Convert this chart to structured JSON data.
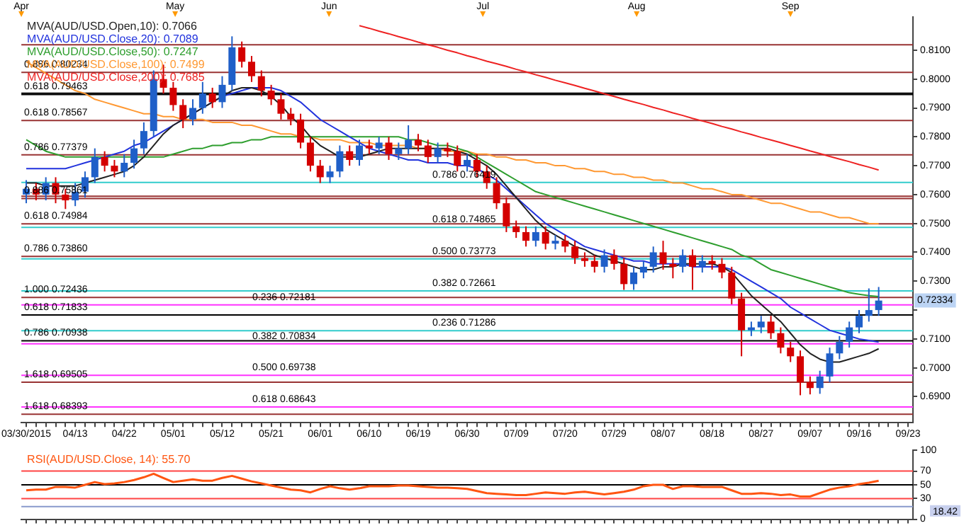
{
  "chart_data": [
    {
      "type": "candlestick",
      "categories": [
        "03/30/2015",
        null,
        null,
        null,
        null,
        "04/13",
        null,
        null,
        null,
        null,
        "04/22",
        null,
        null,
        null,
        null,
        "05/01",
        null,
        null,
        null,
        null,
        "05/12",
        null,
        null,
        null,
        null,
        "05/21",
        null,
        null,
        null,
        null,
        "06/01",
        null,
        null,
        null,
        null,
        "06/10",
        null,
        null,
        null,
        null,
        "06/19",
        null,
        null,
        null,
        null,
        "06/30",
        null,
        null,
        null,
        null,
        "07/09",
        null,
        null,
        null,
        null,
        "07/20",
        null,
        null,
        null,
        null,
        "07/29",
        null,
        null,
        null,
        null,
        "08/07",
        null,
        null,
        null,
        null,
        "08/18",
        null,
        null,
        null,
        null,
        "08/27",
        null,
        null,
        null,
        null,
        "09/07",
        null,
        null,
        null,
        null,
        "09/16",
        null,
        null,
        null,
        null,
        "09/23"
      ],
      "ohlc": [
        [
          0.76,
          0.765,
          0.757,
          0.762
        ],
        [
          0.762,
          0.764,
          0.758,
          0.76
        ],
        [
          0.76,
          0.766,
          0.758,
          0.764
        ],
        [
          0.764,
          0.766,
          0.757,
          0.76
        ],
        [
          0.76,
          0.762,
          0.755,
          0.758
        ],
        [
          0.758,
          0.764,
          0.756,
          0.761
        ],
        [
          0.761,
          0.768,
          0.759,
          0.766
        ],
        [
          0.766,
          0.776,
          0.764,
          0.773
        ],
        [
          0.773,
          0.775,
          0.768,
          0.77
        ],
        [
          0.77,
          0.772,
          0.766,
          0.768
        ],
        [
          0.768,
          0.774,
          0.766,
          0.771
        ],
        [
          0.771,
          0.779,
          0.769,
          0.776
        ],
        [
          0.776,
          0.785,
          0.774,
          0.782
        ],
        [
          0.782,
          0.803,
          0.78,
          0.8
        ],
        [
          0.8,
          0.805,
          0.795,
          0.797
        ],
        [
          0.797,
          0.799,
          0.789,
          0.791
        ],
        [
          0.791,
          0.793,
          0.783,
          0.786
        ],
        [
          0.786,
          0.793,
          0.784,
          0.79
        ],
        [
          0.79,
          0.799,
          0.788,
          0.795
        ],
        [
          0.795,
          0.797,
          0.79,
          0.792
        ],
        [
          0.792,
          0.801,
          0.79,
          0.798
        ],
        [
          0.798,
          0.8148,
          0.796,
          0.811
        ],
        [
          0.811,
          0.813,
          0.804,
          0.806
        ],
        [
          0.806,
          0.808,
          0.799,
          0.801
        ],
        [
          0.801,
          0.803,
          0.794,
          0.796
        ],
        [
          0.796,
          0.798,
          0.791,
          0.793
        ],
        [
          0.793,
          0.795,
          0.786,
          0.788
        ],
        [
          0.788,
          0.79,
          0.784,
          0.786
        ],
        [
          0.786,
          0.788,
          0.776,
          0.778
        ],
        [
          0.778,
          0.78,
          0.768,
          0.77
        ],
        [
          0.77,
          0.772,
          0.764,
          0.766
        ],
        [
          0.766,
          0.77,
          0.764,
          0.768
        ],
        [
          0.768,
          0.777,
          0.766,
          0.775
        ],
        [
          0.775,
          0.777,
          0.77,
          0.772
        ],
        [
          0.772,
          0.779,
          0.77,
          0.777
        ],
        [
          0.777,
          0.779,
          0.774,
          0.776
        ],
        [
          0.776,
          0.78,
          0.774,
          0.778
        ],
        [
          0.778,
          0.78,
          0.772,
          0.774
        ],
        [
          0.774,
          0.778,
          0.772,
          0.776
        ],
        [
          0.776,
          0.784,
          0.774,
          0.779
        ],
        [
          0.779,
          0.781,
          0.775,
          0.777
        ],
        [
          0.777,
          0.779,
          0.771,
          0.773
        ],
        [
          0.773,
          0.778,
          0.771,
          0.776
        ],
        [
          0.776,
          0.778,
          0.773,
          0.775
        ],
        [
          0.775,
          0.777,
          0.768,
          0.77
        ],
        [
          0.77,
          0.774,
          0.768,
          0.772
        ],
        [
          0.772,
          0.774,
          0.766,
          0.768
        ],
        [
          0.768,
          0.77,
          0.762,
          0.764
        ],
        [
          0.764,
          0.766,
          0.755,
          0.757
        ],
        [
          0.757,
          0.759,
          0.747,
          0.749
        ],
        [
          0.749,
          0.751,
          0.745,
          0.747
        ],
        [
          0.747,
          0.749,
          0.742,
          0.744
        ],
        [
          0.744,
          0.749,
          0.742,
          0.747
        ],
        [
          0.747,
          0.749,
          0.741,
          0.743
        ],
        [
          0.743,
          0.746,
          0.741,
          0.744
        ],
        [
          0.744,
          0.746,
          0.74,
          0.742
        ],
        [
          0.742,
          0.744,
          0.736,
          0.738
        ],
        [
          0.738,
          0.74,
          0.735,
          0.737
        ],
        [
          0.737,
          0.739,
          0.733,
          0.735
        ],
        [
          0.735,
          0.741,
          0.733,
          0.739
        ],
        [
          0.739,
          0.741,
          0.734,
          0.736
        ],
        [
          0.736,
          0.738,
          0.727,
          0.729
        ],
        [
          0.729,
          0.735,
          0.727,
          0.733
        ],
        [
          0.733,
          0.737,
          0.731,
          0.735
        ],
        [
          0.735,
          0.742,
          0.733,
          0.74
        ],
        [
          0.74,
          0.744,
          0.734,
          0.736
        ],
        [
          0.736,
          0.738,
          0.731,
          0.735
        ],
        [
          0.735,
          0.741,
          0.733,
          0.739
        ],
        [
          0.739,
          0.741,
          0.727,
          0.735
        ],
        [
          0.735,
          0.739,
          0.733,
          0.737
        ],
        [
          0.737,
          0.739,
          0.734,
          0.736
        ],
        [
          0.736,
          0.738,
          0.731,
          0.733
        ],
        [
          0.733,
          0.735,
          0.722,
          0.724
        ],
        [
          0.724,
          0.726,
          0.704,
          0.713
        ],
        [
          0.713,
          0.716,
          0.711,
          0.714
        ],
        [
          0.714,
          0.718,
          0.712,
          0.716
        ],
        [
          0.716,
          0.718,
          0.71,
          0.712
        ],
        [
          0.712,
          0.714,
          0.705,
          0.707
        ],
        [
          0.707,
          0.709,
          0.702,
          0.704
        ],
        [
          0.704,
          0.706,
          0.6905,
          0.695
        ],
        [
          0.695,
          0.697,
          0.6908,
          0.693
        ],
        [
          0.693,
          0.699,
          0.691,
          0.697
        ],
        [
          0.697,
          0.707,
          0.695,
          0.705
        ],
        [
          0.705,
          0.711,
          0.703,
          0.709
        ],
        [
          0.709,
          0.716,
          0.707,
          0.714
        ],
        [
          0.714,
          0.72,
          0.712,
          0.718
        ],
        [
          0.718,
          0.7275,
          0.716,
          0.72
        ],
        [
          0.72,
          0.728,
          0.718,
          0.7233
        ],
        null,
        null,
        null
      ],
      "series": [
        {
          "type": "line",
          "name": "MVA(AUD/USD.Open,10): 0.7066",
          "color": "#222222",
          "values": [
            0.764,
            0.764,
            0.763,
            0.763,
            0.763,
            0.763,
            0.764,
            0.765,
            0.766,
            0.767,
            0.768,
            0.77,
            0.773,
            0.777,
            0.781,
            0.784,
            0.786,
            0.788,
            0.79,
            0.792,
            0.794,
            0.796,
            0.797,
            0.797,
            0.796,
            0.794,
            0.791,
            0.787,
            0.784,
            0.78,
            0.777,
            0.775,
            0.773,
            0.773,
            0.773,
            0.774,
            0.775,
            0.776,
            0.776,
            0.776,
            0.776,
            0.776,
            0.776,
            0.776,
            0.775,
            0.774,
            0.772,
            0.77,
            0.767,
            0.763,
            0.759,
            0.755,
            0.751,
            0.748,
            0.746,
            0.744,
            0.742,
            0.741,
            0.739,
            0.738,
            0.737,
            0.736,
            0.735,
            0.734,
            0.734,
            0.735,
            0.735,
            0.736,
            0.736,
            0.736,
            0.736,
            0.735,
            0.733,
            0.729,
            0.725,
            0.722,
            0.719,
            0.716,
            0.712,
            0.708,
            0.705,
            0.703,
            0.702,
            0.702,
            0.703,
            0.704,
            0.705,
            0.7066,
            null,
            null,
            null
          ]
        },
        {
          "type": "line",
          "name": "MVA(AUD/USD.Close,20): 0.7089",
          "color": "#2233dd",
          "values": [
            0.769,
            0.769,
            0.769,
            0.769,
            0.769,
            0.77,
            0.771,
            0.772,
            0.773,
            0.774,
            0.775,
            0.777,
            0.778,
            0.78,
            0.782,
            0.784,
            0.786,
            0.788,
            0.79,
            0.792,
            0.794,
            0.795,
            0.796,
            0.797,
            0.797,
            0.797,
            0.796,
            0.794,
            0.792,
            0.789,
            0.786,
            0.784,
            0.782,
            0.78,
            0.778,
            0.776,
            0.775,
            0.774,
            0.773,
            0.772,
            0.772,
            0.771,
            0.771,
            0.771,
            0.77,
            0.77,
            0.769,
            0.767,
            0.765,
            0.762,
            0.759,
            0.756,
            0.753,
            0.75,
            0.748,
            0.746,
            0.744,
            0.742,
            0.741,
            0.74,
            0.739,
            0.738,
            0.737,
            0.737,
            0.736,
            0.736,
            0.736,
            0.736,
            0.735,
            0.735,
            0.735,
            0.735,
            0.734,
            0.732,
            0.73,
            0.728,
            0.726,
            0.724,
            0.721,
            0.719,
            0.717,
            0.715,
            0.713,
            0.712,
            0.711,
            0.71,
            0.7095,
            0.7089,
            null,
            null,
            null
          ]
        },
        {
          "type": "line",
          "name": "MVA(AUD/USD.Close,50): 0.7247",
          "color": "#2e9e2e",
          "values": [
            0.779,
            0.777,
            0.775,
            0.774,
            0.773,
            0.773,
            0.773,
            0.773,
            0.773,
            0.773,
            0.773,
            0.773,
            0.773,
            0.773,
            0.773,
            0.774,
            0.775,
            0.776,
            0.776,
            0.777,
            0.777,
            0.778,
            0.778,
            0.779,
            0.779,
            0.78,
            0.78,
            0.78,
            0.78,
            0.78,
            0.78,
            0.78,
            0.78,
            0.78,
            0.78,
            0.78,
            0.78,
            0.78,
            0.78,
            0.779,
            0.779,
            0.778,
            0.777,
            0.777,
            0.776,
            0.775,
            0.773,
            0.771,
            0.769,
            0.767,
            0.765,
            0.763,
            0.761,
            0.76,
            0.759,
            0.758,
            0.757,
            0.756,
            0.755,
            0.754,
            0.753,
            0.752,
            0.751,
            0.75,
            0.749,
            0.748,
            0.747,
            0.746,
            0.745,
            0.744,
            0.743,
            0.742,
            0.741,
            0.739,
            0.738,
            0.736,
            0.734,
            0.733,
            0.732,
            0.731,
            0.73,
            0.729,
            0.728,
            0.727,
            0.726,
            0.7255,
            0.725,
            0.7247,
            null,
            null,
            null
          ]
        },
        {
          "type": "line",
          "name": "MVA(AUD/USD.Close,100): 0.7499",
          "color": "#ff9933",
          "values": [
            0.806,
            0.804,
            0.802,
            0.8,
            0.798,
            0.796,
            0.795,
            0.793,
            0.792,
            0.791,
            0.79,
            0.789,
            0.788,
            0.788,
            0.787,
            0.787,
            0.786,
            0.786,
            0.786,
            0.785,
            0.785,
            0.785,
            0.784,
            0.784,
            0.783,
            0.782,
            0.781,
            0.781,
            0.78,
            0.78,
            0.779,
            0.779,
            0.779,
            0.778,
            0.778,
            0.778,
            0.777,
            0.777,
            0.777,
            0.777,
            0.776,
            0.776,
            0.776,
            0.775,
            0.775,
            0.775,
            0.774,
            0.774,
            0.773,
            0.773,
            0.772,
            0.772,
            0.771,
            0.771,
            0.77,
            0.77,
            0.769,
            0.769,
            0.768,
            0.768,
            0.767,
            0.767,
            0.766,
            0.766,
            0.765,
            0.765,
            0.764,
            0.764,
            0.763,
            0.762,
            0.762,
            0.761,
            0.76,
            0.76,
            0.759,
            0.758,
            0.757,
            0.757,
            0.756,
            0.755,
            0.754,
            0.754,
            0.753,
            0.752,
            0.752,
            0.751,
            0.75,
            0.7499,
            null,
            null,
            null
          ]
        },
        {
          "type": "line",
          "name": "MVA(AUD/USD.Close,200): 0.7685",
          "color": "#ee2222",
          "values": [
            null,
            null,
            null,
            null,
            null,
            null,
            null,
            null,
            null,
            null,
            null,
            null,
            null,
            null,
            null,
            null,
            null,
            null,
            null,
            null,
            null,
            null,
            null,
            null,
            null,
            null,
            null,
            null,
            null,
            null,
            null,
            null,
            null,
            null,
            0.8185,
            0.8176,
            0.8166,
            0.8157,
            0.8147,
            0.8138,
            0.8128,
            0.8119,
            0.811,
            0.81,
            0.8091,
            0.8081,
            0.8072,
            0.8062,
            0.8053,
            0.8044,
            0.8034,
            0.8025,
            0.8015,
            0.8006,
            0.7996,
            0.7987,
            0.7978,
            0.7968,
            0.7959,
            0.7949,
            0.794,
            0.793,
            0.7921,
            0.7912,
            0.7902,
            0.7893,
            0.7883,
            0.7874,
            0.7864,
            0.7855,
            0.7846,
            0.7836,
            0.7827,
            0.7817,
            0.7808,
            0.7798,
            0.7789,
            0.778,
            0.777,
            0.7761,
            0.7751,
            0.7742,
            0.7732,
            0.7723,
            0.7714,
            0.7704,
            0.7695,
            0.7685,
            null,
            null,
            null
          ]
        }
      ],
      "ylim": [
        0.681,
        0.8215
      ],
      "yticks": [
        {
          "value": 0.69,
          "label": "0.6900"
        },
        {
          "value": 0.7,
          "label": "0.7000"
        },
        {
          "value": 0.71,
          "label": "0.7100"
        },
        {
          "value": 0.72,
          "label": null
        },
        {
          "value": 0.73,
          "label": "0.7300"
        },
        {
          "value": 0.74,
          "label": "0.7400"
        },
        {
          "value": 0.75,
          "label": "0.7500"
        },
        {
          "value": 0.76,
          "label": "0.7600"
        },
        {
          "value": 0.77,
          "label": "0.7700"
        },
        {
          "value": 0.78,
          "label": "0.7800"
        },
        {
          "value": 0.79,
          "label": "0.7900"
        },
        {
          "value": 0.8,
          "label": "0.8000"
        },
        {
          "value": 0.81,
          "label": "0.8100"
        }
      ],
      "ref_lines": [
        {
          "axis": "y",
          "value": 0.8119,
          "color": "#993333"
        },
        {
          "axis": "y",
          "value": 0.80234,
          "label": "0.886 0.80234",
          "color": "#993333"
        },
        {
          "axis": "y",
          "value": 0.7951,
          "color": "#000000"
        },
        {
          "axis": "y",
          "value": 0.79463,
          "label": "0.618 0.79463",
          "color": "#000000"
        },
        {
          "axis": "y",
          "value": 0.78567,
          "label": "0.618 0.78567",
          "color": "#993333"
        },
        {
          "axis": "y",
          "value": 0.77379,
          "label": "0.786 0.77379",
          "color": "#993333"
        },
        {
          "axis": "y",
          "value": 0.7594,
          "color": "#993333"
        },
        {
          "axis": "y",
          "value": 0.75861,
          "label": "0.886 0.75861",
          "color": "#993333"
        },
        {
          "axis": "y",
          "value": 0.74984,
          "label": "0.618 0.74984",
          "color": "#993333"
        },
        {
          "axis": "y",
          "value": 0.7386,
          "label": "0.786 0.73860",
          "color": "#993333"
        },
        {
          "axis": "y",
          "value": 0.72436,
          "label": "1.000 0.72436",
          "color": "#993333"
        },
        {
          "axis": "y",
          "value": 0.71833,
          "label": "0.618 0.71833",
          "color": "#000000"
        },
        {
          "axis": "y",
          "value": 0.70938,
          "label": "0.786 0.70938",
          "color": "#000000"
        },
        {
          "axis": "y",
          "value": 0.69505,
          "label": "1.618 0.69505",
          "color": "#993333"
        },
        {
          "axis": "y",
          "value": 0.68393,
          "label": "1.618 0.68393",
          "color": "#993333"
        },
        {
          "axis": "y",
          "value": 0.72181,
          "label": "0.236 0.72181",
          "color": "#ff33ff"
        },
        {
          "axis": "y",
          "value": 0.70834,
          "label": "0.382 0.70834",
          "color": "#ff33ff"
        },
        {
          "axis": "y",
          "value": 0.69738,
          "label": "0.500 0.69738",
          "color": "#ff33ff"
        },
        {
          "axis": "y",
          "value": 0.68643,
          "label": "0.618 0.68643",
          "color": "#ff33ff"
        },
        {
          "axis": "y",
          "value": 0.76419,
          "label": "0.786 0.76419",
          "color": "#33cccc"
        },
        {
          "axis": "y",
          "value": 0.74865,
          "label": "0.618 0.74865",
          "color": "#33cccc"
        },
        {
          "axis": "y",
          "value": 0.73773,
          "label": "0.500 0.73773",
          "color": "#33cccc"
        },
        {
          "axis": "y",
          "value": 0.72661,
          "label": "0.382 0.72661",
          "color": "#33cccc"
        },
        {
          "axis": "y",
          "value": 0.71286,
          "label": "0.236 0.71286",
          "color": "#33cccc"
        }
      ],
      "annotations": [
        "Apr",
        "May",
        "Jun",
        "Jul",
        "Aug",
        "Sep",
        {
          "text": "0.72334",
          "y": 0.72334
        }
      ],
      "legend": "top left"
    },
    {
      "type": "line",
      "categories": [
        null,
        null,
        null,
        null,
        null,
        null,
        null,
        null,
        null,
        null,
        null,
        null,
        null,
        null,
        null,
        null,
        null,
        null,
        null,
        null,
        null,
        null,
        null,
        null,
        null,
        null,
        null,
        null,
        null,
        null,
        null,
        null,
        null,
        null,
        null,
        null,
        null,
        null,
        null,
        null,
        null,
        null,
        null,
        null,
        null,
        null,
        null,
        null,
        null,
        null,
        null,
        null,
        null,
        null,
        null,
        null,
        null,
        null,
        null,
        null,
        null,
        null,
        null,
        null,
        null,
        null,
        null,
        null,
        null,
        null,
        null,
        null,
        null,
        null,
        null,
        null,
        null,
        null,
        null,
        null,
        null,
        null,
        null,
        null,
        null,
        null,
        null,
        null,
        null,
        null,
        null
      ],
      "series": [
        {
          "name": "RSI(AUD/USD.Close, 14): 55.70",
          "color": "#ff5511",
          "values": [
            42,
            43,
            43,
            47,
            47,
            46,
            50,
            54,
            51,
            52,
            54,
            57,
            61,
            66,
            60,
            54,
            56,
            58,
            56,
            56,
            60,
            63,
            59,
            55,
            52,
            49,
            46,
            43,
            42,
            39,
            44,
            48,
            45,
            43,
            45,
            48,
            48,
            48,
            49,
            49,
            48,
            47,
            46,
            46,
            45,
            44,
            41,
            38,
            37,
            36,
            35,
            35,
            37,
            39,
            38,
            37,
            39,
            40,
            38,
            36,
            38,
            40,
            43,
            48,
            50,
            50,
            44,
            48,
            48,
            47,
            47,
            47,
            42,
            37,
            37,
            38,
            37,
            35,
            36,
            33,
            33,
            38,
            43,
            46,
            48,
            51,
            53,
            56,
            null,
            null,
            null
          ]
        }
      ],
      "ylim": [
        0,
        100
      ],
      "yticks": [
        0,
        30,
        50,
        70,
        100
      ],
      "ref_lines": [
        {
          "axis": "y",
          "value": 70,
          "color": "#ff4444"
        },
        {
          "axis": "y",
          "value": 50,
          "color": "#000000"
        },
        {
          "axis": "y",
          "value": 30,
          "color": "#ff4444"
        },
        {
          "axis": "y",
          "value": 18.42,
          "label": "18.42",
          "color": "#8899cc"
        }
      ],
      "tick_labels": "y",
      "legend": "top left"
    }
  ]
}
